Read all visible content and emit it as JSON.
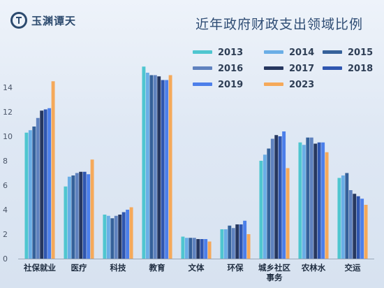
{
  "brand": {
    "name": "玉渊谭天"
  },
  "chart_data": {
    "type": "bar",
    "title": "近年政府财政支出领域比例",
    "categories": [
      "社保就业",
      "医疗",
      "科技",
      "教育",
      "文体",
      "环保",
      "城乡社区\n事务",
      "农林水",
      "交运"
    ],
    "ylim": [
      0,
      16
    ],
    "yticks": [
      0,
      2,
      4,
      6,
      8,
      10,
      12,
      14
    ],
    "grid": false,
    "legend_position": "top-right",
    "series": [
      {
        "name": "2013",
        "color": "#4fc6d0",
        "values": [
          10.3,
          5.9,
          3.6,
          15.7,
          1.8,
          2.4,
          8.0,
          9.5,
          6.6
        ]
      },
      {
        "name": "2014",
        "color": "#6aaee6",
        "values": [
          10.5,
          6.7,
          3.5,
          15.2,
          1.7,
          2.4,
          8.5,
          9.3,
          6.8
        ]
      },
      {
        "name": "2015",
        "color": "#35619a",
        "values": [
          10.8,
          6.8,
          3.3,
          15.0,
          1.7,
          2.7,
          9.0,
          9.9,
          7.0
        ]
      },
      {
        "name": "2016",
        "color": "#5f82bf",
        "values": [
          11.5,
          7.0,
          3.5,
          15.0,
          1.7,
          2.5,
          9.8,
          9.9,
          5.6
        ]
      },
      {
        "name": "2017",
        "color": "#26375f",
        "values": [
          12.1,
          7.1,
          3.6,
          14.9,
          1.6,
          2.8,
          10.1,
          9.4,
          5.3
        ]
      },
      {
        "name": "2018",
        "color": "#2f56b0",
        "values": [
          12.2,
          7.1,
          3.8,
          14.6,
          1.6,
          2.8,
          10.0,
          9.5,
          5.1
        ]
      },
      {
        "name": "2019",
        "color": "#4c7fea",
        "values": [
          12.3,
          6.9,
          4.0,
          14.6,
          1.6,
          3.1,
          10.4,
          9.5,
          4.9
        ]
      },
      {
        "name": "2023",
        "color": "#f5a95a",
        "values": [
          14.5,
          8.1,
          4.2,
          15.0,
          1.4,
          2.0,
          7.4,
          8.7,
          4.4
        ]
      }
    ]
  }
}
